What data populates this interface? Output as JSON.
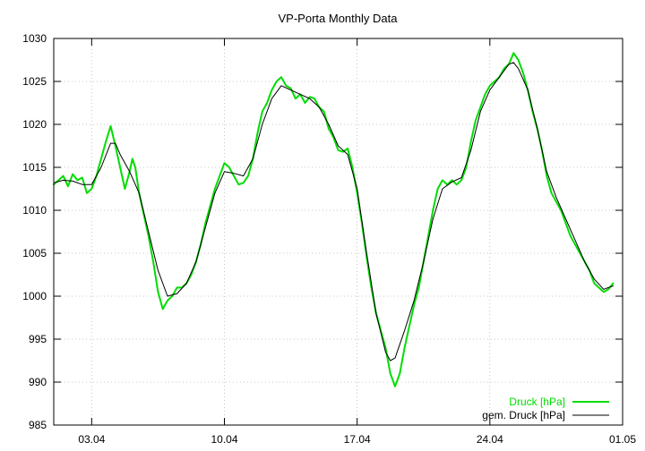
{
  "chart_data": {
    "type": "line",
    "title": "VP-Porta Monthly Data",
    "xlabel": "",
    "ylabel": "",
    "xlim": [
      1.0,
      31.0
    ],
    "ylim": [
      985,
      1030
    ],
    "yticks": [
      985,
      990,
      995,
      1000,
      1005,
      1010,
      1015,
      1020,
      1025,
      1030
    ],
    "xticks": [
      {
        "x": 3.0,
        "label": "03.04"
      },
      {
        "x": 10.0,
        "label": "10.04"
      },
      {
        "x": 17.0,
        "label": "17.04"
      },
      {
        "x": 24.0,
        "label": "24.04"
      },
      {
        "x": 31.0,
        "label": "01.05"
      }
    ],
    "grid": true,
    "legend": "bottom-right",
    "series": [
      {
        "name": "Druck [hPa]",
        "color": "#00dd00",
        "points": [
          [
            1.0,
            1013.0
          ],
          [
            1.25,
            1013.5
          ],
          [
            1.5,
            1014.0
          ],
          [
            1.75,
            1012.8
          ],
          [
            2.0,
            1014.2
          ],
          [
            2.25,
            1013.5
          ],
          [
            2.5,
            1013.8
          ],
          [
            2.75,
            1012.0
          ],
          [
            3.0,
            1012.5
          ],
          [
            3.25,
            1014.0
          ],
          [
            3.5,
            1016.0
          ],
          [
            3.75,
            1018.0
          ],
          [
            4.0,
            1019.8
          ],
          [
            4.25,
            1017.5
          ],
          [
            4.5,
            1015.0
          ],
          [
            4.75,
            1012.5
          ],
          [
            5.0,
            1014.5
          ],
          [
            5.15,
            1016.0
          ],
          [
            5.3,
            1015.0
          ],
          [
            5.5,
            1012.0
          ],
          [
            5.75,
            1009.5
          ],
          [
            6.0,
            1007.0
          ],
          [
            6.25,
            1004.0
          ],
          [
            6.5,
            1000.5
          ],
          [
            6.75,
            998.5
          ],
          [
            7.0,
            999.5
          ],
          [
            7.25,
            1000.0
          ],
          [
            7.5,
            1001.0
          ],
          [
            7.75,
            1001.0
          ],
          [
            8.0,
            1001.5
          ],
          [
            8.25,
            1002.5
          ],
          [
            8.5,
            1004.0
          ],
          [
            8.75,
            1006.0
          ],
          [
            9.0,
            1008.5
          ],
          [
            9.25,
            1010.5
          ],
          [
            9.5,
            1012.5
          ],
          [
            9.75,
            1014.0
          ],
          [
            10.0,
            1015.5
          ],
          [
            10.25,
            1015.0
          ],
          [
            10.5,
            1014.0
          ],
          [
            10.75,
            1013.0
          ],
          [
            11.0,
            1013.2
          ],
          [
            11.25,
            1014.0
          ],
          [
            11.5,
            1016.0
          ],
          [
            11.75,
            1019.0
          ],
          [
            12.0,
            1021.5
          ],
          [
            12.25,
            1022.5
          ],
          [
            12.5,
            1024.0
          ],
          [
            12.75,
            1025.0
          ],
          [
            13.0,
            1025.5
          ],
          [
            13.25,
            1024.5
          ],
          [
            13.5,
            1024.2
          ],
          [
            13.75,
            1023.0
          ],
          [
            14.0,
            1023.5
          ],
          [
            14.25,
            1022.5
          ],
          [
            14.5,
            1023.2
          ],
          [
            14.75,
            1023.0
          ],
          [
            15.0,
            1022.0
          ],
          [
            15.25,
            1021.5
          ],
          [
            15.5,
            1019.5
          ],
          [
            15.75,
            1018.5
          ],
          [
            16.0,
            1017.0
          ],
          [
            16.25,
            1016.8
          ],
          [
            16.5,
            1017.2
          ],
          [
            16.75,
            1015.0
          ],
          [
            17.0,
            1012.0
          ],
          [
            17.25,
            1008.5
          ],
          [
            17.5,
            1004.5
          ],
          [
            17.75,
            1001.0
          ],
          [
            18.0,
            998.0
          ],
          [
            18.25,
            996.0
          ],
          [
            18.5,
            994.0
          ],
          [
            18.75,
            991.0
          ],
          [
            19.0,
            989.5
          ],
          [
            19.25,
            991.0
          ],
          [
            19.5,
            994.0
          ],
          [
            19.75,
            996.5
          ],
          [
            20.0,
            999.0
          ],
          [
            20.25,
            1001.0
          ],
          [
            20.5,
            1004.0
          ],
          [
            20.75,
            1007.0
          ],
          [
            21.0,
            1010.0
          ],
          [
            21.25,
            1012.5
          ],
          [
            21.5,
            1013.5
          ],
          [
            21.75,
            1013.0
          ],
          [
            22.0,
            1013.5
          ],
          [
            22.25,
            1013.0
          ],
          [
            22.5,
            1013.5
          ],
          [
            22.75,
            1015.0
          ],
          [
            23.0,
            1018.0
          ],
          [
            23.25,
            1020.5
          ],
          [
            23.5,
            1022.0
          ],
          [
            23.75,
            1023.5
          ],
          [
            24.0,
            1024.5
          ],
          [
            24.25,
            1025.0
          ],
          [
            24.5,
            1025.5
          ],
          [
            24.75,
            1026.5
          ],
          [
            25.0,
            1027.0
          ],
          [
            25.25,
            1028.3
          ],
          [
            25.5,
            1027.5
          ],
          [
            25.75,
            1026.0
          ],
          [
            26.0,
            1024.0
          ],
          [
            26.25,
            1021.5
          ],
          [
            26.5,
            1019.5
          ],
          [
            26.75,
            1017.0
          ],
          [
            27.0,
            1014.0
          ],
          [
            27.25,
            1012.0
          ],
          [
            27.5,
            1011.0
          ],
          [
            27.75,
            1010.0
          ],
          [
            28.0,
            1008.5
          ],
          [
            28.25,
            1007.0
          ],
          [
            28.5,
            1006.0
          ],
          [
            28.75,
            1005.0
          ],
          [
            29.0,
            1004.0
          ],
          [
            29.25,
            1003.0
          ],
          [
            29.5,
            1001.5
          ],
          [
            29.75,
            1001.0
          ],
          [
            30.0,
            1000.5
          ],
          [
            30.25,
            1000.8
          ],
          [
            30.5,
            1001.5
          ]
        ]
      },
      {
        "name": "gem. Druck [hPa]",
        "color": "#000000",
        "points": [
          [
            1.0,
            1013.2
          ],
          [
            1.5,
            1013.5
          ],
          [
            2.0,
            1013.4
          ],
          [
            2.5,
            1013.0
          ],
          [
            3.0,
            1013.0
          ],
          [
            3.5,
            1015.0
          ],
          [
            4.0,
            1017.8
          ],
          [
            4.25,
            1017.8
          ],
          [
            4.5,
            1016.5
          ],
          [
            5.0,
            1014.5
          ],
          [
            5.5,
            1012.0
          ],
          [
            6.0,
            1007.5
          ],
          [
            6.5,
            1003.0
          ],
          [
            7.0,
            1000.0
          ],
          [
            7.5,
            1000.3
          ],
          [
            8.0,
            1001.5
          ],
          [
            8.5,
            1004.0
          ],
          [
            9.0,
            1008.0
          ],
          [
            9.5,
            1012.0
          ],
          [
            10.0,
            1014.5
          ],
          [
            10.5,
            1014.3
          ],
          [
            11.0,
            1014.0
          ],
          [
            11.5,
            1016.0
          ],
          [
            12.0,
            1020.0
          ],
          [
            12.5,
            1023.0
          ],
          [
            13.0,
            1024.5
          ],
          [
            13.5,
            1024.0
          ],
          [
            14.0,
            1023.5
          ],
          [
            14.5,
            1023.0
          ],
          [
            15.0,
            1022.0
          ],
          [
            15.5,
            1020.0
          ],
          [
            16.0,
            1017.5
          ],
          [
            16.5,
            1016.5
          ],
          [
            17.0,
            1012.5
          ],
          [
            17.5,
            1005.0
          ],
          [
            18.0,
            998.0
          ],
          [
            18.5,
            993.5
          ],
          [
            18.75,
            992.5
          ],
          [
            19.0,
            992.8
          ],
          [
            19.5,
            996.0
          ],
          [
            20.0,
            999.5
          ],
          [
            20.5,
            1004.0
          ],
          [
            21.0,
            1009.0
          ],
          [
            21.5,
            1012.5
          ],
          [
            22.0,
            1013.3
          ],
          [
            22.5,
            1013.8
          ],
          [
            23.0,
            1017.0
          ],
          [
            23.5,
            1021.5
          ],
          [
            24.0,
            1024.0
          ],
          [
            24.5,
            1025.5
          ],
          [
            25.0,
            1027.0
          ],
          [
            25.25,
            1027.2
          ],
          [
            25.5,
            1026.5
          ],
          [
            26.0,
            1024.0
          ],
          [
            26.5,
            1019.5
          ],
          [
            27.0,
            1014.5
          ],
          [
            27.5,
            1011.5
          ],
          [
            28.0,
            1009.0
          ],
          [
            28.5,
            1006.5
          ],
          [
            29.0,
            1004.0
          ],
          [
            29.5,
            1002.0
          ],
          [
            30.0,
            1000.8
          ],
          [
            30.5,
            1001.2
          ]
        ]
      }
    ]
  }
}
